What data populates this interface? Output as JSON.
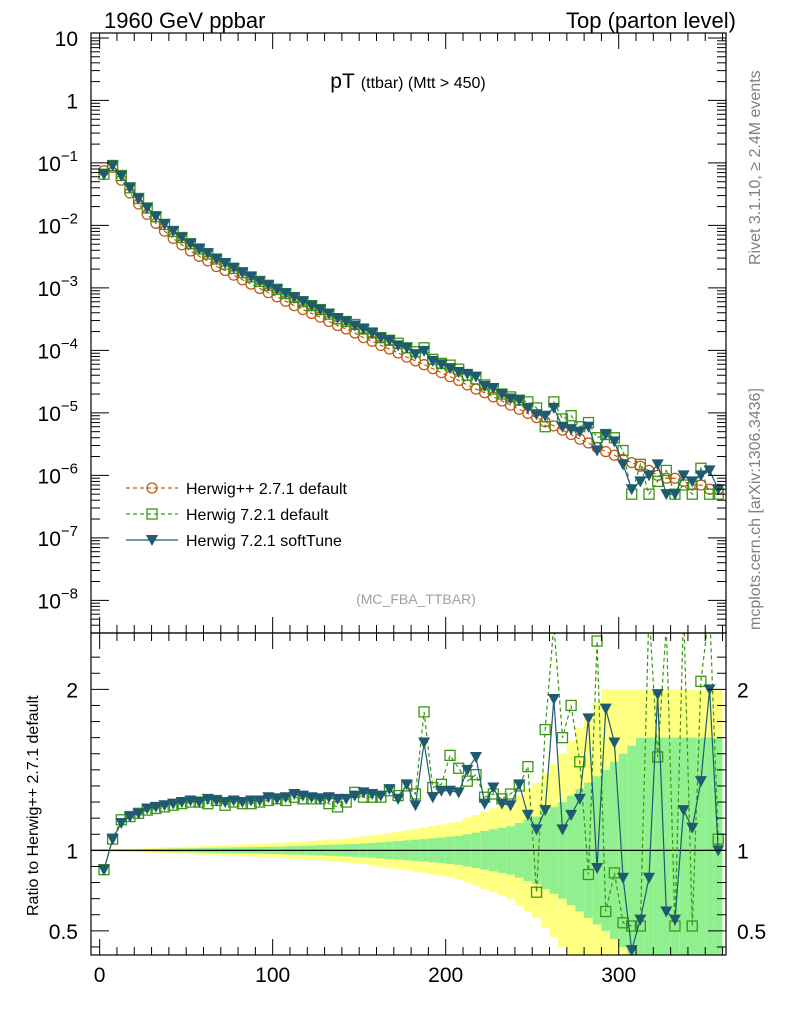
{
  "header": {
    "left": "1960 GeV ppbar",
    "right": "Top (parton level)"
  },
  "side_labels": {
    "rivet": "Rivet 3.1.10, ≥ 2.4M events",
    "mcplots": "mcplots.cern.ch [arXiv:1306.3436]"
  },
  "plot_title": {
    "main": "pT",
    "sub": "(ttbar) (Mtt > 450)"
  },
  "analysis_tag": "(MC_FBA_TTBAR)",
  "ratio_ylabel": "Ratio to Herwig++ 2.7.1 default",
  "colors": {
    "herwigpp": "#c05a14",
    "herwig721": "#3c9614",
    "softtune": "#1e5a70",
    "band_outer": "#ffff80",
    "band_inner": "#90f090"
  },
  "chart_data": [
    {
      "type": "line",
      "title": "pT (ttbar) (Mtt > 450)",
      "yscale": "log",
      "xlim": [
        -5,
        362
      ],
      "ylim": [
        3e-09,
        12
      ],
      "yticks": [
        {
          "v": 10,
          "label": "10"
        },
        {
          "v": 1,
          "label": "1"
        },
        {
          "v": 0.1,
          "label": "10",
          "exp": "−1"
        },
        {
          "v": 0.01,
          "label": "10",
          "exp": "−2"
        },
        {
          "v": 0.001,
          "label": "10",
          "exp": "−3"
        },
        {
          "v": 0.0001,
          "label": "10",
          "exp": "−4"
        },
        {
          "v": 1e-05,
          "label": "10",
          "exp": "−5"
        },
        {
          "v": 1e-06,
          "label": "10",
          "exp": "−6"
        },
        {
          "v": 1e-07,
          "label": "10",
          "exp": "−7"
        },
        {
          "v": 1e-08,
          "label": "10",
          "exp": "−8"
        }
      ],
      "legend_placement": "bottom-left",
      "series": [
        {
          "name": "Herwig++ 2.7.1 default",
          "style": "dashed-circle",
          "x": [
            2.5,
            7.5,
            12.5,
            17.5,
            22.5,
            27.5,
            32.5,
            37.5,
            42.5,
            47.5,
            52.5,
            57.5,
            62.5,
            67.5,
            72.5,
            77.5,
            82.5,
            87.5,
            92.5,
            97.5,
            102.5,
            107.5,
            112.5,
            117.5,
            122.5,
            127.5,
            132.5,
            137.5,
            142.5,
            147.5,
            152.5,
            157.5,
            162.5,
            167.5,
            172.5,
            177.5,
            182.5,
            187.5,
            192.5,
            197.5,
            202.5,
            207.5,
            212.5,
            217.5,
            222.5,
            227.5,
            232.5,
            237.5,
            242.5,
            247.5,
            252.5,
            257.5,
            262.5,
            267.5,
            272.5,
            277.5,
            282.5,
            287.5,
            292.5,
            297.5,
            302.5,
            307.5,
            312.5,
            317.5,
            322.5,
            327.5,
            332.5,
            337.5,
            342.5,
            347.5,
            352.5,
            357.5
          ],
          "y": [
            0.075,
            0.085,
            0.053,
            0.033,
            0.022,
            0.015,
            0.0108,
            0.0081,
            0.0062,
            0.0049,
            0.0039,
            0.0032,
            0.0027,
            0.0022,
            0.0019,
            0.0016,
            0.00135,
            0.00115,
            0.00098,
            0.00084,
            0.00072,
            0.00061,
            0.00052,
            0.00045,
            0.00039,
            0.00034,
            0.00029,
            0.00025,
            0.00022,
            0.00019,
            0.00016,
            0.00014,
            0.00012,
            0.000105,
            9.1e-05,
            7.8e-05,
            6.8e-05,
            5.9e-05,
            5.1e-05,
            4.4e-05,
            3.8e-05,
            3.3e-05,
            2.8e-05,
            2.4e-05,
            2.1e-05,
            1.8e-05,
            1.55e-05,
            1.33e-05,
            1.14e-05,
            9.8e-06,
            8.4e-06,
            7.2e-06,
            6.2e-06,
            5.3e-06,
            4.5e-06,
            3.8e-06,
            3.3e-06,
            2.8e-06,
            2.4e-06,
            2.1e-06,
            1.8e-06,
            1.6e-06,
            1.4e-06,
            1.2e-06,
            1e-06,
            9e-07,
            9e-07,
            8e-07,
            7e-07,
            7e-07,
            6e-07,
            6e-07
          ]
        },
        {
          "name": "Herwig 7.2.1 default",
          "style": "dashed-square",
          "x": [
            2.5,
            7.5,
            12.5,
            17.5,
            22.5,
            27.5,
            32.5,
            37.5,
            42.5,
            47.5,
            52.5,
            57.5,
            62.5,
            67.5,
            72.5,
            77.5,
            82.5,
            87.5,
            92.5,
            97.5,
            102.5,
            107.5,
            112.5,
            117.5,
            122.5,
            127.5,
            132.5,
            137.5,
            142.5,
            147.5,
            152.5,
            157.5,
            162.5,
            167.5,
            172.5,
            177.5,
            182.5,
            187.5,
            192.5,
            197.5,
            202.5,
            207.5,
            212.5,
            217.5,
            222.5,
            227.5,
            232.5,
            237.5,
            242.5,
            247.5,
            252.5,
            257.5,
            262.5,
            267.5,
            272.5,
            277.5,
            282.5,
            287.5,
            292.5,
            297.5,
            302.5,
            307.5,
            312.5,
            317.5,
            322.5,
            327.5,
            332.5,
            337.5,
            342.5,
            347.5,
            352.5,
            357.5
          ],
          "y": [
            0.066,
            0.091,
            0.063,
            0.04,
            0.027,
            0.019,
            0.0138,
            0.0104,
            0.008,
            0.0064,
            0.0051,
            0.0042,
            0.0035,
            0.0029,
            0.0024,
            0.00205,
            0.00175,
            0.0015,
            0.00127,
            0.0011,
            0.00095,
            0.00081,
            0.0007,
            0.0006,
            0.00052,
            0.00045,
            0.00038,
            0.00032,
            0.00029,
            0.00026,
            0.00022,
            0.00019,
            0.00016,
            0.000145,
            0.00013,
            0.00011,
            9.5e-05,
            0.00011,
            7.2e-05,
            6.2e-05,
            5.8e-05,
            5e-05,
            4e-05,
            3.5e-05,
            2.8e-05,
            2.4e-05,
            2e-05,
            1.8e-05,
            1.6e-05,
            1.5e-05,
            1.2e-05,
            6e-06,
            1.5e-05,
            8e-06,
            9e-06,
            6e-06,
            7e-06,
            4e-06,
            4.5e-06,
            4e-06,
            2.5e-06,
            5e-07,
            1.5e-06,
            5e-07,
            8e-07,
            1.2e-06,
            5e-07,
            7e-07,
            5e-07,
            1.3e-06,
            5e-07,
            5e-07
          ]
        },
        {
          "name": "Herwig 7.2.1 softTune",
          "style": "solid-triangle",
          "x": [
            2.5,
            7.5,
            12.5,
            17.5,
            22.5,
            27.5,
            32.5,
            37.5,
            42.5,
            47.5,
            52.5,
            57.5,
            62.5,
            67.5,
            72.5,
            77.5,
            82.5,
            87.5,
            92.5,
            97.5,
            102.5,
            107.5,
            112.5,
            117.5,
            122.5,
            127.5,
            132.5,
            137.5,
            142.5,
            147.5,
            152.5,
            157.5,
            162.5,
            167.5,
            172.5,
            177.5,
            182.5,
            187.5,
            192.5,
            197.5,
            202.5,
            207.5,
            212.5,
            217.5,
            222.5,
            227.5,
            232.5,
            237.5,
            242.5,
            247.5,
            252.5,
            257.5,
            262.5,
            267.5,
            272.5,
            277.5,
            282.5,
            287.5,
            292.5,
            297.5,
            302.5,
            307.5,
            312.5,
            317.5,
            322.5,
            327.5,
            332.5,
            337.5,
            342.5,
            347.5,
            352.5,
            357.5
          ],
          "y": [
            0.066,
            0.091,
            0.062,
            0.04,
            0.027,
            0.0192,
            0.0139,
            0.0105,
            0.0081,
            0.0064,
            0.0051,
            0.0042,
            0.0036,
            0.0029,
            0.0025,
            0.0021,
            0.00176,
            0.0015,
            0.00128,
            0.0011,
            0.00095,
            0.00082,
            0.00071,
            0.00061,
            0.00052,
            0.00045,
            0.00039,
            0.00033,
            0.00029,
            0.00025,
            0.00022,
            0.00019,
            0.00016,
            0.000145,
            0.00012,
            0.00011,
            8.7e-05,
            9.8e-05,
            6.8e-05,
            6e-05,
            5.2e-05,
            4.5e-05,
            4.2e-05,
            3.8e-05,
            2.7e-05,
            2.5e-05,
            2e-05,
            1.7e-05,
            1.6e-05,
            1.2e-05,
            9.5e-06,
            9e-06,
            1.2e-05,
            6e-06,
            5.5e-06,
            5e-06,
            6e-06,
            2.5e-06,
            4.5e-06,
            3.5e-06,
            1.5e-06,
            6e-07,
            8e-07,
            1e-06,
            1.5e-06,
            5e-07,
            5e-07,
            1e-06,
            8e-07,
            1e-06,
            1.2e-06,
            6e-07
          ]
        }
      ]
    },
    {
      "type": "line",
      "ylabel": "Ratio to Herwig++ 2.7.1 default",
      "ylim": [
        0.35,
        2.35
      ],
      "xlim": [
        -5,
        362
      ],
      "xticks": [
        0,
        100,
        200,
        300
      ],
      "yticks": [
        {
          "v": 2,
          "label": "2"
        },
        {
          "v": 1,
          "label": "1"
        },
        {
          "v": 0.5,
          "label": "0.5"
        }
      ],
      "reference_line": 1,
      "band_inner_halfwidth": [
        0.005,
        0.005,
        0.006,
        0.006,
        0.007,
        0.008,
        0.009,
        0.01,
        0.011,
        0.012,
        0.013,
        0.014,
        0.015,
        0.016,
        0.017,
        0.018,
        0.019,
        0.02,
        0.021,
        0.022,
        0.023,
        0.025,
        0.026,
        0.028,
        0.03,
        0.032,
        0.034,
        0.036,
        0.038,
        0.04,
        0.043,
        0.046,
        0.05,
        0.054,
        0.058,
        0.062,
        0.066,
        0.07,
        0.075,
        0.08,
        0.085,
        0.09,
        0.1,
        0.11,
        0.12,
        0.13,
        0.14,
        0.15,
        0.17,
        0.19,
        0.21,
        0.24,
        0.27,
        0.3,
        0.34,
        0.38,
        0.42,
        0.46,
        0.5,
        0.55,
        0.6,
        0.65,
        0.7,
        0.7,
        0.7,
        0.7,
        0.7,
        0.7,
        0.7,
        0.7,
        0.7,
        0.7
      ],
      "band_outer_halfwidth": [
        0.008,
        0.009,
        0.01,
        0.011,
        0.012,
        0.014,
        0.016,
        0.018,
        0.02,
        0.022,
        0.024,
        0.026,
        0.028,
        0.03,
        0.032,
        0.034,
        0.036,
        0.038,
        0.04,
        0.043,
        0.046,
        0.049,
        0.052,
        0.055,
        0.058,
        0.062,
        0.066,
        0.07,
        0.075,
        0.08,
        0.086,
        0.092,
        0.1,
        0.108,
        0.116,
        0.124,
        0.132,
        0.14,
        0.15,
        0.16,
        0.17,
        0.18,
        0.2,
        0.22,
        0.24,
        0.26,
        0.28,
        0.3,
        0.34,
        0.38,
        0.42,
        0.48,
        0.54,
        0.6,
        0.68,
        0.76,
        0.84,
        0.92,
        1,
        1,
        1,
        1,
        1,
        1,
        1,
        1,
        1,
        1,
        1,
        1,
        1,
        1
      ],
      "series": [
        {
          "name": "Herwig 7.2.1 default",
          "style": "dashed-square",
          "x": [
            2.5,
            7.5,
            12.5,
            17.5,
            22.5,
            27.5,
            32.5,
            37.5,
            42.5,
            47.5,
            52.5,
            57.5,
            62.5,
            67.5,
            72.5,
            77.5,
            82.5,
            87.5,
            92.5,
            97.5,
            102.5,
            107.5,
            112.5,
            117.5,
            122.5,
            127.5,
            132.5,
            137.5,
            142.5,
            147.5,
            152.5,
            157.5,
            162.5,
            167.5,
            172.5,
            177.5,
            182.5,
            187.5,
            192.5,
            197.5,
            202.5,
            207.5,
            212.5,
            217.5,
            222.5,
            227.5,
            232.5,
            237.5,
            242.5,
            247.5,
            252.5,
            257.5,
            262.5,
            267.5,
            272.5,
            277.5,
            282.5,
            287.5,
            292.5,
            297.5,
            302.5,
            307.5,
            312.5,
            317.5,
            322.5,
            327.5,
            332.5,
            337.5,
            342.5,
            347.5,
            352.5,
            357.5
          ],
          "y": [
            0.88,
            1.07,
            1.19,
            1.21,
            1.23,
            1.25,
            1.26,
            1.27,
            1.28,
            1.29,
            1.3,
            1.3,
            1.29,
            1.31,
            1.28,
            1.3,
            1.29,
            1.29,
            1.3,
            1.31,
            1.32,
            1.31,
            1.33,
            1.32,
            1.32,
            1.32,
            1.29,
            1.27,
            1.3,
            1.36,
            1.33,
            1.33,
            1.33,
            1.37,
            1.34,
            1.4,
            1.35,
            1.86,
            1.39,
            1.41,
            1.59,
            1.51,
            1.43,
            1.47,
            1.33,
            1.35,
            1.32,
            1.35,
            1.4,
            1.52,
            0.74,
            1.75,
            2.4,
            1.7,
            1.9,
            1.55,
            0.85,
            2.3,
            0.62,
            0.86,
            0.55,
            0.53,
            0.53,
            2.5,
            1.58,
            2.4,
            0.53,
            2.5,
            0.53,
            2.05,
            2.5,
            1.07
          ]
        },
        {
          "name": "Herwig 7.2.1 softTune",
          "style": "solid-triangle",
          "x": [
            2.5,
            7.5,
            12.5,
            17.5,
            22.5,
            27.5,
            32.5,
            37.5,
            42.5,
            47.5,
            52.5,
            57.5,
            62.5,
            67.5,
            72.5,
            77.5,
            82.5,
            87.5,
            92.5,
            97.5,
            102.5,
            107.5,
            112.5,
            117.5,
            122.5,
            127.5,
            132.5,
            137.5,
            142.5,
            147.5,
            152.5,
            157.5,
            162.5,
            167.5,
            172.5,
            177.5,
            182.5,
            187.5,
            192.5,
            197.5,
            202.5,
            207.5,
            212.5,
            217.5,
            222.5,
            227.5,
            232.5,
            237.5,
            242.5,
            247.5,
            252.5,
            257.5,
            262.5,
            267.5,
            272.5,
            277.5,
            282.5,
            287.5,
            292.5,
            297.5,
            302.5,
            307.5,
            312.5,
            317.5,
            322.5,
            327.5,
            332.5,
            337.5,
            342.5,
            347.5,
            352.5,
            357.5
          ],
          "y": [
            0.88,
            1.07,
            1.17,
            1.21,
            1.23,
            1.26,
            1.27,
            1.28,
            1.29,
            1.3,
            1.31,
            1.3,
            1.32,
            1.31,
            1.3,
            1.31,
            1.3,
            1.31,
            1.31,
            1.33,
            1.32,
            1.33,
            1.35,
            1.34,
            1.33,
            1.32,
            1.33,
            1.32,
            1.32,
            1.34,
            1.36,
            1.35,
            1.34,
            1.38,
            1.32,
            1.41,
            1.28,
            1.67,
            1.33,
            1.37,
            1.37,
            1.36,
            1.5,
            1.58,
            1.29,
            1.39,
            1.29,
            1.28,
            1.41,
            1.22,
            1.13,
            1.25,
            1.94,
            1.13,
            1.22,
            1.32,
            1.82,
            0.89,
            1.88,
            1.67,
            0.83,
            0.38,
            0.57,
            0.83,
            1.97,
            0.62,
            0.57,
            1.25,
            1.14,
            1.43,
            2.0,
            1.0
          ]
        }
      ]
    }
  ]
}
